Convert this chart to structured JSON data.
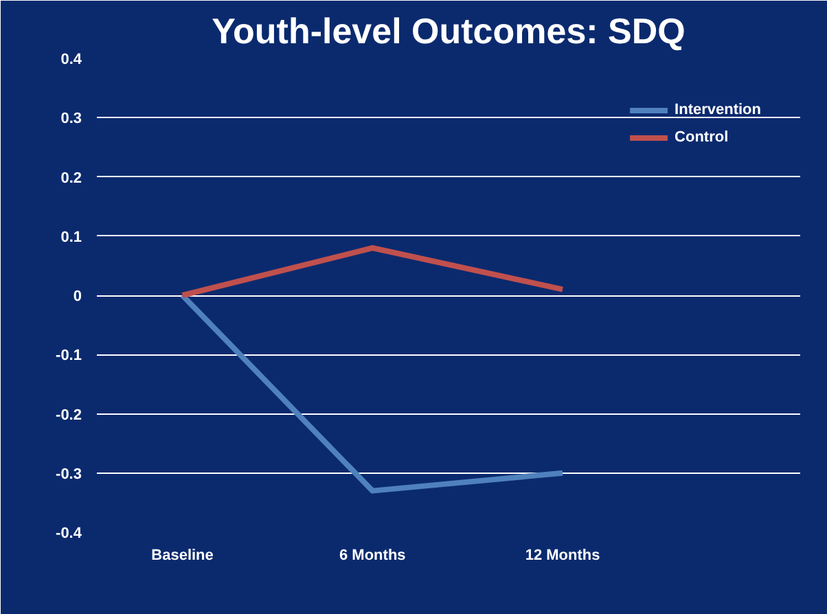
{
  "chart_data": {
    "type": "line",
    "title": "Youth-level Outcomes: SDQ",
    "categories": [
      "Baseline",
      "6 Months",
      "12 Months"
    ],
    "series": [
      {
        "name": "Intervention",
        "color": "#4f81bd",
        "values": [
          0,
          -0.33,
          -0.3
        ]
      },
      {
        "name": "Control",
        "color": "#c0504d",
        "values": [
          0,
          0.08,
          0.01
        ]
      }
    ],
    "ylim": [
      -0.4,
      0.4
    ],
    "yticks": [
      -0.4,
      -0.3,
      -0.2,
      -0.1,
      0,
      0.1,
      0.2,
      0.3,
      0.4
    ],
    "grid": "y",
    "legend": "top right",
    "marker": "none",
    "line_style": "solid"
  }
}
